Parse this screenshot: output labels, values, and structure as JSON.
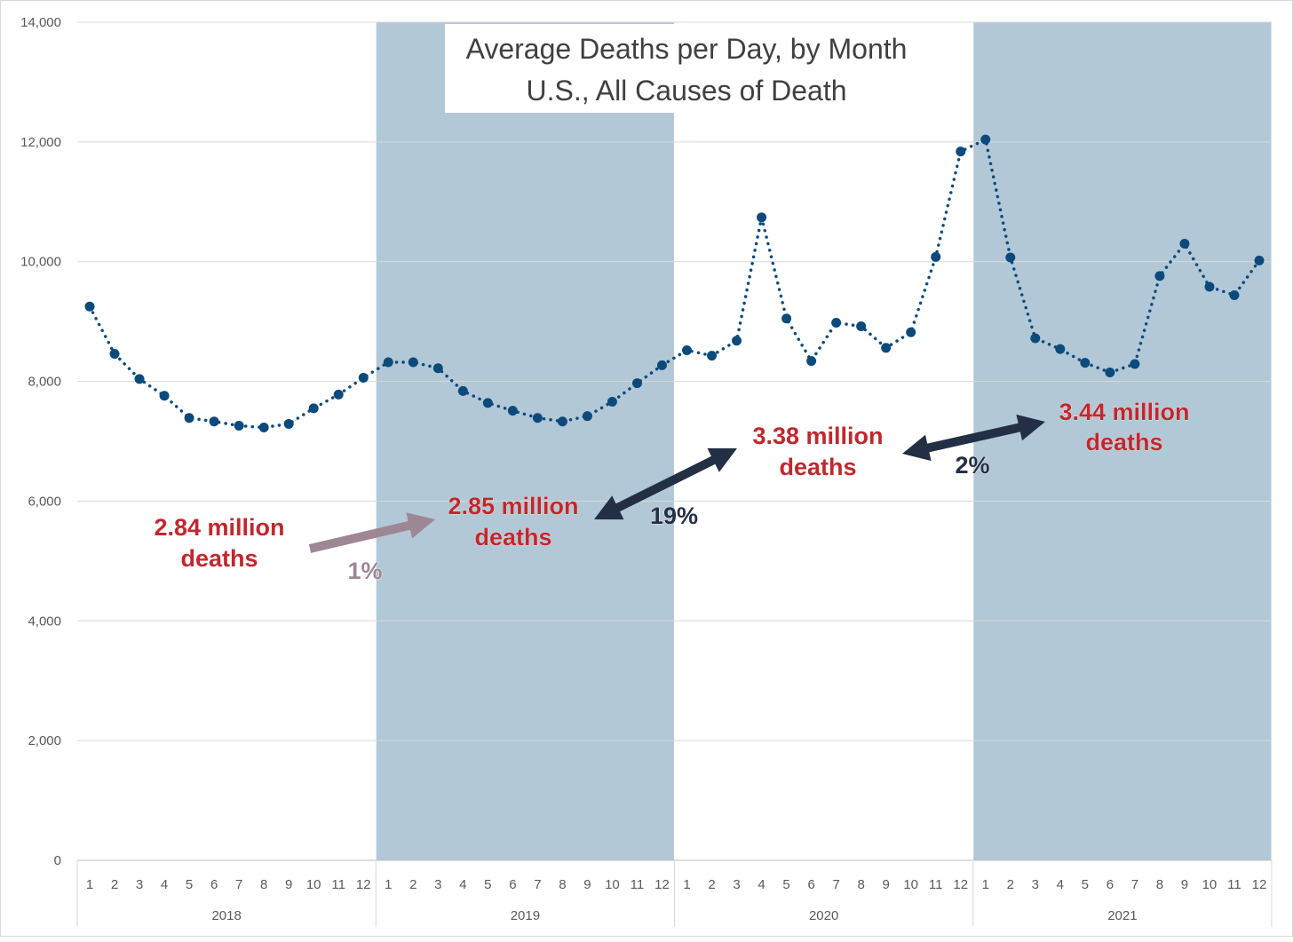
{
  "chart_data": {
    "type": "line",
    "title": "Average Deaths per Day, by Month",
    "subtitle": "U.S., All Causes of Death",
    "xlabel": "",
    "ylabel": "",
    "ylim": [
      0,
      14000
    ],
    "yticks": [
      0,
      2000,
      4000,
      6000,
      8000,
      10000,
      12000,
      14000
    ],
    "ytick_labels": [
      "0",
      "2,000",
      "4,000",
      "6,000",
      "8,000",
      "10,000",
      "12,000",
      "14,000"
    ],
    "grid": true,
    "legend": "none",
    "line_style": "dotted",
    "month_labels": [
      "1",
      "2",
      "3",
      "4",
      "5",
      "6",
      "7",
      "8",
      "9",
      "10",
      "11",
      "12"
    ],
    "years": [
      "2018",
      "2019",
      "2020",
      "2021"
    ],
    "shaded_years": [
      "2019",
      "2021"
    ],
    "series": [
      {
        "values": [
          9250,
          8460,
          8040,
          7760,
          7390,
          7330,
          7260,
          7230,
          7290,
          7550,
          7780,
          8060,
          8320,
          8320,
          8220,
          7840,
          7640,
          7510,
          7390,
          7330,
          7420,
          7660,
          7970,
          8270,
          8520,
          8430,
          8680,
          10740,
          9050,
          8340,
          8980,
          8920,
          8560,
          8820,
          10080,
          11840,
          12040,
          10070,
          8720,
          8540,
          8310,
          8150,
          8290,
          9760,
          10300,
          9580,
          9440,
          10020
        ]
      }
    ],
    "annotations": [
      {
        "line1": "2.84 million",
        "line2": "deaths"
      },
      {
        "line1": "2.85 million",
        "line2": "deaths"
      },
      {
        "line1": "3.38 million",
        "line2": "deaths"
      },
      {
        "line1": "3.44 million",
        "line2": "deaths"
      }
    ],
    "changes": [
      {
        "label": "1%",
        "color": "#9e8795"
      },
      {
        "label": "19%",
        "color": "#232f45"
      },
      {
        "label": "2%",
        "color": "#232f45"
      }
    ]
  },
  "colors": {
    "series": "#0d4a7c",
    "shade": "#b2c8d6",
    "grid": "#d9d9d9",
    "axis_text": "#595959",
    "annotation_text": "#c0282d",
    "arrow_light": "#9e8795",
    "arrow_dark": "#232f45"
  }
}
